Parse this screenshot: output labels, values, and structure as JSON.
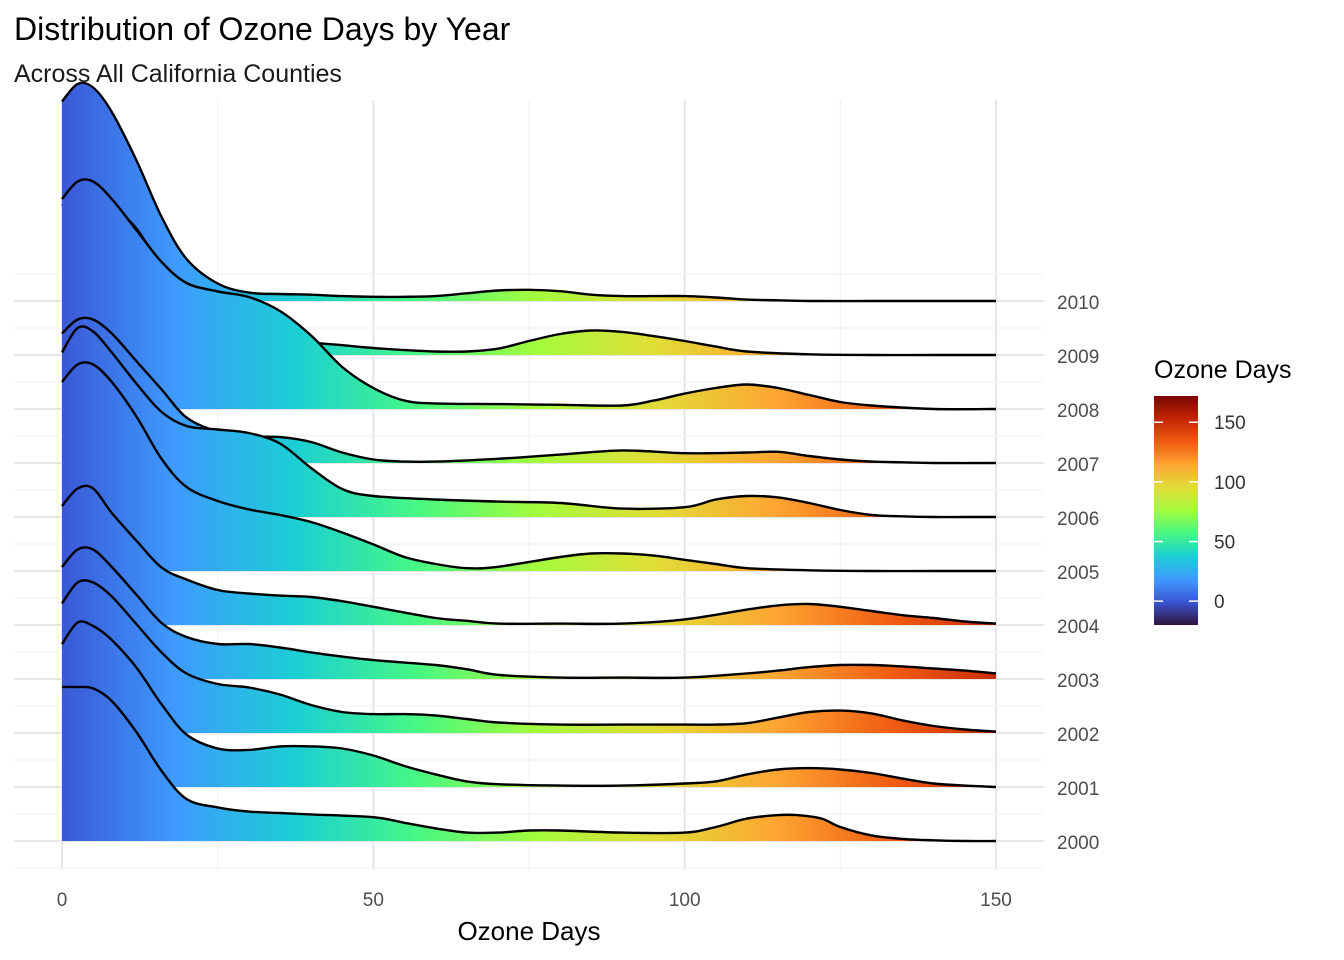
{
  "chart_data": {
    "type": "ridgeline",
    "title": "Distribution of Ozone Days by Year",
    "subtitle": "Across All California Counties",
    "xlabel": "Ozone Days",
    "ylabel": "",
    "xlim": [
      0,
      150
    ],
    "x_ticks": [
      0,
      50,
      100,
      150
    ],
    "grid": true,
    "legend_position": "right",
    "legend": {
      "title": "Ozone Days",
      "range": [
        -20,
        172
      ],
      "ticks": [
        0,
        50,
        100,
        150
      ],
      "palette": [
        "#30123b",
        "#3a55d4",
        "#3e9bfe",
        "#1bcfd4",
        "#46f884",
        "#a2fc3c",
        "#e1dd37",
        "#fea632",
        "#f05b12",
        "#c42503",
        "#7a0403"
      ]
    },
    "series": [
      {
        "name": "2000",
        "x": [
          0,
          2.5,
          5,
          8,
          12,
          16,
          20,
          25,
          30,
          35,
          40,
          50,
          55,
          60,
          65,
          70,
          75,
          80,
          90,
          100,
          105,
          110,
          115,
          118,
          122,
          125,
          130,
          135,
          140,
          145,
          150
        ],
        "density": [
          2.2,
          2.2,
          2.18,
          2.0,
          1.55,
          1.0,
          0.6,
          0.48,
          0.42,
          0.4,
          0.38,
          0.34,
          0.26,
          0.18,
          0.12,
          0.12,
          0.15,
          0.15,
          0.12,
          0.12,
          0.2,
          0.32,
          0.37,
          0.37,
          0.32,
          0.2,
          0.08,
          0.03,
          0.01,
          0.0,
          0.0
        ]
      },
      {
        "name": "2001",
        "x": [
          0,
          2.5,
          5,
          8,
          12,
          16,
          20,
          25,
          30,
          35,
          40,
          45,
          50,
          55,
          60,
          65,
          70,
          80,
          90,
          100,
          105,
          110,
          115,
          120,
          125,
          130,
          135,
          140,
          145,
          150
        ],
        "density": [
          2.04,
          2.35,
          2.3,
          2.1,
          1.7,
          1.18,
          0.75,
          0.55,
          0.53,
          0.58,
          0.58,
          0.55,
          0.45,
          0.3,
          0.18,
          0.08,
          0.04,
          0.02,
          0.02,
          0.05,
          0.08,
          0.18,
          0.25,
          0.27,
          0.25,
          0.2,
          0.12,
          0.05,
          0.02,
          0.0
        ]
      },
      {
        "name": "2002",
        "x": [
          0,
          2.5,
          5,
          8,
          12,
          16,
          20,
          25,
          30,
          35,
          40,
          45,
          50,
          55,
          60,
          65,
          70,
          80,
          90,
          100,
          105,
          110,
          115,
          120,
          125,
          130,
          135,
          140,
          145,
          150
        ],
        "density": [
          1.85,
          2.15,
          2.15,
          1.95,
          1.55,
          1.15,
          0.85,
          0.7,
          0.65,
          0.55,
          0.4,
          0.3,
          0.27,
          0.27,
          0.25,
          0.2,
          0.15,
          0.12,
          0.12,
          0.12,
          0.12,
          0.14,
          0.22,
          0.3,
          0.32,
          0.28,
          0.18,
          0.1,
          0.05,
          0.02
        ]
      },
      {
        "name": "2003",
        "x": [
          0,
          2.5,
          5,
          8,
          12,
          16,
          20,
          25,
          30,
          35,
          40,
          45,
          50,
          60,
          65,
          70,
          80,
          90,
          100,
          110,
          115,
          120,
          125,
          130,
          135,
          140,
          145,
          150
        ],
        "density": [
          1.6,
          1.85,
          1.85,
          1.6,
          1.2,
          0.8,
          0.6,
          0.5,
          0.5,
          0.45,
          0.38,
          0.32,
          0.27,
          0.2,
          0.14,
          0.06,
          0.02,
          0.02,
          0.02,
          0.08,
          0.12,
          0.17,
          0.2,
          0.2,
          0.18,
          0.15,
          0.12,
          0.08
        ]
      },
      {
        "name": "2004",
        "x": [
          0,
          2.5,
          5,
          8,
          12,
          16,
          20,
          25,
          30,
          35,
          40,
          45,
          50,
          60,
          65,
          70,
          80,
          90,
          100,
          110,
          115,
          120,
          125,
          130,
          135,
          140,
          145,
          150
        ],
        "density": [
          1.7,
          1.95,
          1.95,
          1.6,
          1.2,
          0.82,
          0.65,
          0.5,
          0.45,
          0.42,
          0.4,
          0.34,
          0.26,
          0.1,
          0.06,
          0.02,
          0.02,
          0.02,
          0.08,
          0.22,
          0.28,
          0.3,
          0.26,
          0.2,
          0.14,
          0.1,
          0.05,
          0.02
        ]
      },
      {
        "name": "2005",
        "x": [
          0,
          2.5,
          5,
          8,
          12,
          16,
          20,
          25,
          30,
          35,
          40,
          45,
          50,
          55,
          60,
          65,
          70,
          80,
          85,
          90,
          95,
          100,
          105,
          110,
          120,
          130,
          140,
          150
        ],
        "density": [
          2.7,
          2.95,
          2.95,
          2.7,
          2.2,
          1.6,
          1.2,
          1.0,
          0.88,
          0.8,
          0.7,
          0.55,
          0.38,
          0.2,
          0.1,
          0.04,
          0.06,
          0.2,
          0.25,
          0.25,
          0.22,
          0.16,
          0.1,
          0.04,
          0.01,
          0.0,
          0.0,
          0.0
        ]
      },
      {
        "name": "2006",
        "x": [
          0,
          2.5,
          5,
          8,
          12,
          16,
          20,
          25,
          30,
          35,
          40,
          45,
          50,
          60,
          70,
          80,
          90,
          100,
          105,
          110,
          115,
          120,
          125,
          130,
          135,
          140,
          145,
          150
        ],
        "density": [
          2.35,
          2.7,
          2.65,
          2.35,
          1.9,
          1.5,
          1.3,
          1.25,
          1.2,
          1.05,
          0.7,
          0.4,
          0.3,
          0.25,
          0.22,
          0.2,
          0.12,
          0.14,
          0.25,
          0.3,
          0.28,
          0.2,
          0.1,
          0.03,
          0.01,
          0.0,
          0.0,
          0.0
        ]
      },
      {
        "name": "2007",
        "x": [
          0,
          2.5,
          5,
          8,
          12,
          16,
          20,
          25,
          30,
          35,
          40,
          45,
          50,
          55,
          60,
          70,
          80,
          90,
          100,
          110,
          115,
          120,
          125,
          130,
          135,
          140,
          150
        ],
        "density": [
          1.85,
          2.05,
          2.05,
          1.85,
          1.45,
          1.05,
          0.65,
          0.45,
          0.38,
          0.37,
          0.3,
          0.15,
          0.05,
          0.02,
          0.02,
          0.06,
          0.12,
          0.18,
          0.14,
          0.15,
          0.16,
          0.1,
          0.05,
          0.02,
          0.01,
          0.0,
          0.0
        ]
      },
      {
        "name": "2008",
        "x": [
          0,
          2.5,
          5,
          8,
          12,
          16,
          20,
          25,
          30,
          35,
          40,
          45,
          50,
          55,
          60,
          70,
          80,
          90,
          95,
          100,
          105,
          110,
          115,
          120,
          125,
          130,
          140,
          150
        ],
        "density": [
          3.0,
          3.25,
          3.25,
          3.0,
          2.55,
          2.1,
          1.8,
          1.68,
          1.6,
          1.4,
          1.05,
          0.6,
          0.3,
          0.12,
          0.08,
          0.07,
          0.06,
          0.05,
          0.12,
          0.22,
          0.3,
          0.35,
          0.3,
          0.2,
          0.1,
          0.05,
          0.0,
          0.0
        ]
      },
      {
        "name": "2009",
        "x": [
          0,
          2.5,
          5,
          8,
          12,
          16,
          20,
          25,
          30,
          35,
          40,
          45,
          50,
          55,
          60,
          65,
          70,
          75,
          80,
          85,
          90,
          95,
          100,
          105,
          110,
          120,
          130,
          140,
          150
        ],
        "density": [
          2.13,
          2.35,
          2.35,
          2.15,
          1.8,
          1.25,
          0.78,
          0.5,
          0.35,
          0.25,
          0.18,
          0.14,
          0.1,
          0.07,
          0.05,
          0.05,
          0.09,
          0.2,
          0.3,
          0.35,
          0.33,
          0.27,
          0.2,
          0.12,
          0.05,
          0.01,
          0.0,
          0.0,
          0.0
        ]
      },
      {
        "name": "2010",
        "x": [
          0,
          2.5,
          5,
          8,
          12,
          16,
          20,
          25,
          30,
          35,
          40,
          45,
          50,
          55,
          60,
          65,
          70,
          75,
          80,
          85,
          90,
          95,
          100,
          105,
          110,
          115,
          120,
          130,
          140,
          150
        ],
        "density": [
          2.85,
          3.1,
          3.05,
          2.7,
          2.0,
          1.2,
          0.6,
          0.25,
          0.12,
          0.1,
          0.09,
          0.07,
          0.06,
          0.06,
          0.07,
          0.11,
          0.15,
          0.16,
          0.14,
          0.09,
          0.07,
          0.07,
          0.07,
          0.05,
          0.02,
          0.01,
          0.0,
          0.0,
          0.0,
          0.0
        ]
      }
    ]
  }
}
